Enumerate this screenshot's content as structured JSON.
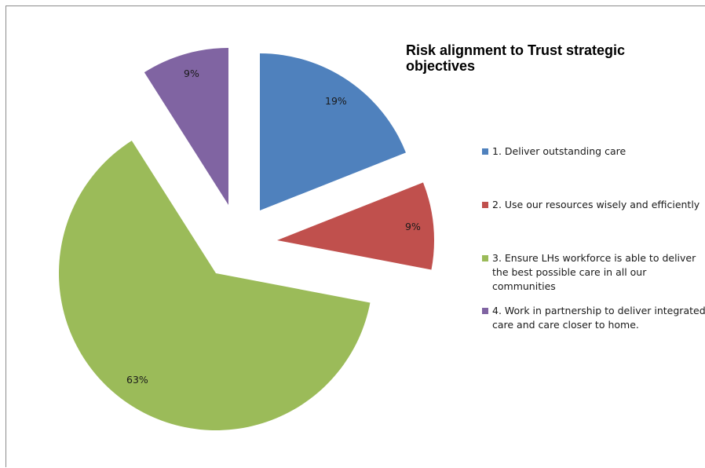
{
  "chart_data": {
    "type": "pie",
    "title": "Risk alignment to Trust strategic objectives",
    "exploded": true,
    "legend_position": "right",
    "slices": [
      {
        "name": "1. Deliver outstanding care",
        "label": "19%",
        "value": 19,
        "color": "#4F81BD"
      },
      {
        "name": "2.  Use our resources wisely and efficiently",
        "label": "9%",
        "value": 9,
        "color": "#C0504D"
      },
      {
        "name": "3.  Ensure LHs workforce is able to deliver the best possible care in all our communities",
        "label": "63%",
        "value": 63,
        "color": "#9BBB59"
      },
      {
        "name": "4.  Work in partnership to deliver integrated care and care closer to home.",
        "label": "9%",
        "value": 9,
        "color": "#8064A2"
      }
    ]
  }
}
